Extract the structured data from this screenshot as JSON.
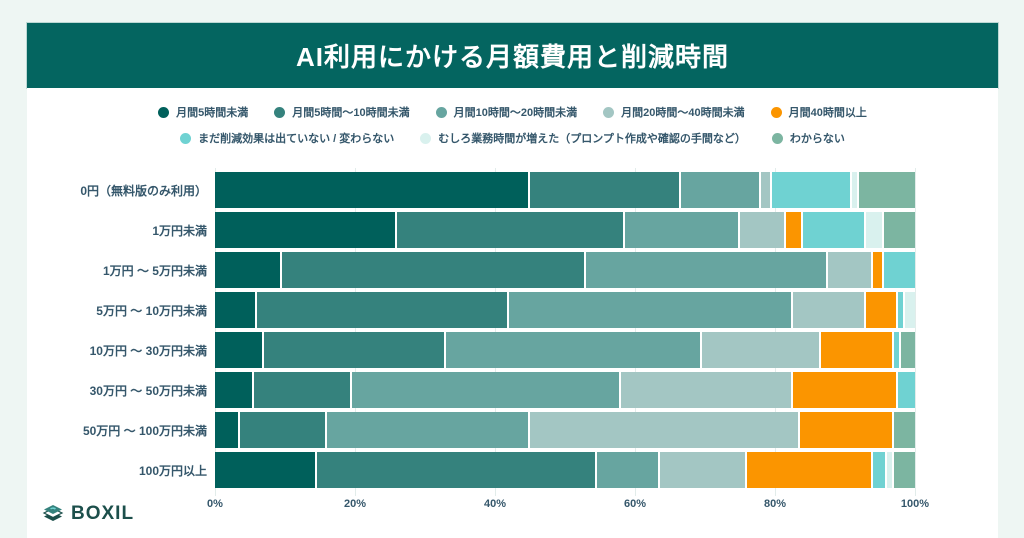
{
  "title": "AI利用にかける月額費用と削減時間",
  "brand": {
    "logo_text": "BOXIL"
  },
  "colors": {
    "banner_bg": "#046560",
    "page_bg": "#eef6f3",
    "card_bg": "#ffffff",
    "text": "#35576b",
    "grid": "#e2ecea",
    "logo_dark": "#1c4f4b",
    "logo_accent": "#35827d"
  },
  "chart_data": {
    "type": "bar",
    "stacked": true,
    "orientation": "horizontal",
    "unit": "%",
    "grid": true,
    "legend_position": "top",
    "xlim": [
      0,
      100
    ],
    "x_ticks": [
      "0%",
      "20%",
      "40%",
      "60%",
      "80%",
      "100%"
    ],
    "categories": [
      "0円（無料版のみ利用）",
      "1万円未満",
      "1万円 〜 5万円未満",
      "5万円 〜 10万円未満",
      "10万円 〜 30万円未満",
      "30万円 〜 50万円未満",
      "50万円 〜 100万円未満",
      "100万円以上"
    ],
    "series": [
      {
        "name": "月間5時間未満",
        "color": "#00605b",
        "values": [
          45,
          26,
          9.5,
          6,
          7,
          5.5,
          3.5,
          14.5
        ]
      },
      {
        "name": "月間5時間〜10時間未満",
        "color": "#35827d",
        "values": [
          21.5,
          32.5,
          43.5,
          36,
          26,
          14,
          12.5,
          40
        ]
      },
      {
        "name": "月間10時間〜20時間未満",
        "color": "#67a5a0",
        "values": [
          11.5,
          16.5,
          34.5,
          40.5,
          36.5,
          38.5,
          29,
          9
        ]
      },
      {
        "name": "月間20時間〜40時間未満",
        "color": "#a3c6c3",
        "values": [
          1.5,
          6.5,
          6.5,
          10.5,
          17,
          24.5,
          38.5,
          12.5
        ]
      },
      {
        "name": "月間40時間以上",
        "color": "#fb9500",
        "values": [
          0,
          2.5,
          1.5,
          4.5,
          10.5,
          15,
          13.5,
          18
        ]
      },
      {
        "name": "まだ削減効果は出ていない / 変わらない",
        "color": "#6fd2d2",
        "values": [
          11.5,
          9,
          4.5,
          1,
          1,
          2.5,
          0,
          2
        ]
      },
      {
        "name": "むしろ業務時間が増えた（プロンプト作成や確認の手間など）",
        "color": "#d9f1ee",
        "values": [
          1,
          2.5,
          0,
          1.5,
          0,
          0,
          0,
          1
        ]
      },
      {
        "name": "わからない",
        "color": "#7cb5a1",
        "values": [
          8,
          4.5,
          0,
          0,
          2,
          0,
          3,
          3
        ]
      }
    ]
  }
}
